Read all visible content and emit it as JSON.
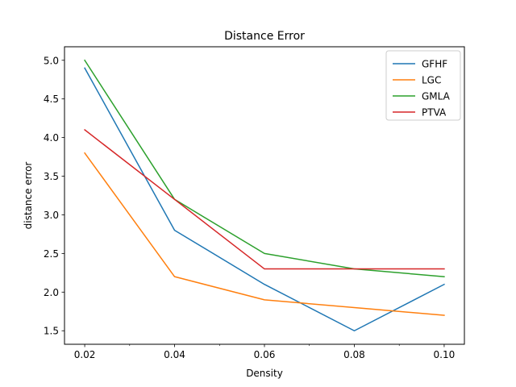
{
  "chart_data": {
    "type": "line",
    "title": "Distance Error",
    "xlabel": "Density",
    "ylabel": "distance error",
    "x": [
      0.02,
      0.04,
      0.06,
      0.08,
      0.1
    ],
    "x_tick_labels": [
      "0.02",
      "0.04",
      "0.06",
      "0.08",
      "0.10"
    ],
    "x_minor_ticks": [
      0.03,
      0.05,
      0.07,
      0.09
    ],
    "xlim": [
      0.0155,
      0.1045
    ],
    "ylim": [
      1.325,
      5.175
    ],
    "y_ticks": [
      1.5,
      2.0,
      2.5,
      3.0,
      3.5,
      4.0,
      4.5,
      5.0
    ],
    "y_tick_labels": [
      "1.5",
      "2.0",
      "2.5",
      "3.0",
      "3.5",
      "4.0",
      "4.5",
      "5.0"
    ],
    "grid": false,
    "legend_position": "top-right",
    "series": [
      {
        "name": "GFHF",
        "color": "#1f77b4",
        "values": [
          4.9,
          2.8,
          2.1,
          1.5,
          2.1
        ]
      },
      {
        "name": "LGC",
        "color": "#ff7f0e",
        "values": [
          3.8,
          2.2,
          1.9,
          1.8,
          1.7
        ]
      },
      {
        "name": "GMLA",
        "color": "#2ca02c",
        "values": [
          5.0,
          3.2,
          2.5,
          2.3,
          2.2
        ]
      },
      {
        "name": "PTVA",
        "color": "#d62728",
        "values": [
          4.1,
          3.2,
          2.3,
          2.3,
          2.3
        ]
      }
    ]
  }
}
